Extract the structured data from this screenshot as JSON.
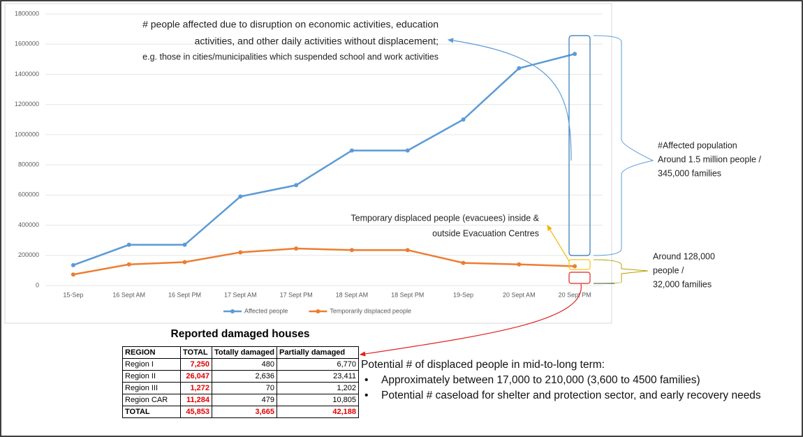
{
  "chart_data": {
    "type": "line",
    "categories": [
      "15-Sep",
      "16 Sept AM",
      "16 Sept PM",
      "17 Sept AM",
      "17 Sept PM",
      "18 Sept AM",
      "18 Sept PM",
      "19-Sep",
      "20 Sept AM",
      "20 Sept PM"
    ],
    "series": [
      {
        "name": "Affected people",
        "color": "#5b9bd5",
        "values": [
          135000,
          270000,
          270000,
          590000,
          665000,
          895000,
          895000,
          1100000,
          1440000,
          1535000
        ]
      },
      {
        "name": "Temporarily displaced people",
        "color": "#ed7d31",
        "values": [
          73000,
          140000,
          155000,
          220000,
          245000,
          235000,
          235000,
          150000,
          140000,
          128000
        ]
      }
    ],
    "ylim": [
      0,
      1800000
    ],
    "yticks": [
      0,
      200000,
      400000,
      600000,
      800000,
      1000000,
      1200000,
      1400000,
      1600000,
      1800000
    ],
    "grid": true,
    "legend": "bottom"
  },
  "annotations": {
    "affected_note": [
      "# people affected due to disruption on economic activities, education",
      "activities, and other daily activities without displacement;",
      "e.g. those in cities/municipalities which suspended school and work activities"
    ],
    "displaced_note": [
      "Temporary displaced people (evacuees) inside &",
      "outside Evacuation Centres"
    ],
    "affected_population": [
      "#Affected population",
      "Around 1.5 million people /",
      "345,000 families"
    ],
    "displaced_population": [
      "Around 128,000",
      "people /",
      "32,000 families"
    ]
  },
  "table": {
    "title": "Reported damaged houses",
    "header": [
      "REGION",
      "TOTAL",
      "Totally damaged",
      "Partially damaged"
    ],
    "rows": [
      [
        "Region I",
        "7,250",
        "480",
        "6,770"
      ],
      [
        "Region II",
        "26,047",
        "2,636",
        "23,411"
      ],
      [
        "Region III",
        "1,272",
        "70",
        "1,202"
      ],
      [
        "Region CAR",
        "11,284",
        "479",
        "10,805"
      ],
      [
        "TOTAL",
        "45,853",
        "3,665",
        "42,188"
      ]
    ]
  },
  "note": {
    "heading": "Potential # of displaced people in mid-to-long term:",
    "bullets": [
      "Approximately between 17,000 to 210,000 (3,600 to 4500 families)",
      "Potential # caseload for shelter and protection sector, and early recovery needs"
    ]
  }
}
